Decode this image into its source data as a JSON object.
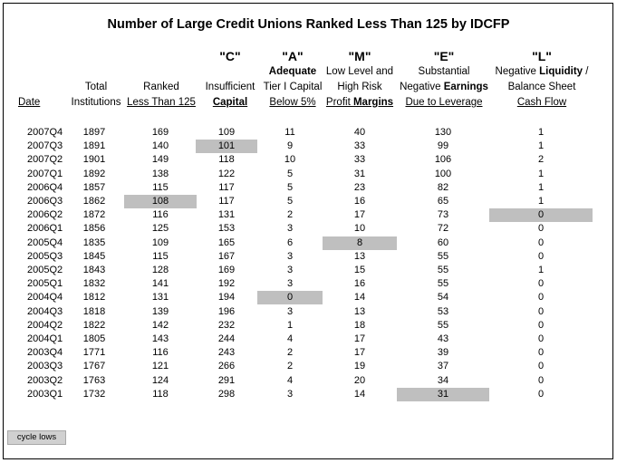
{
  "title": "Number of Large Credit Unions Ranked Less Than 125 by IDCFP",
  "headers": {
    "date": {
      "label": "Date"
    },
    "total": {
      "line1": "Total",
      "line2": "Institutions"
    },
    "ranked": {
      "line1": "Ranked",
      "line2": "Less Than 125"
    },
    "c": {
      "letter": "\"C\"",
      "line1": "Insufficient",
      "line2": "Capital"
    },
    "a": {
      "letter": "\"A\"",
      "line1": "Adequate",
      "line2": "Tier I Capital",
      "line3": "Below 5%"
    },
    "m": {
      "letter": "\"M\"",
      "line1": "Low Level and",
      "line2": "High Risk",
      "line3a": "Profit ",
      "line3b": "Margins"
    },
    "e": {
      "letter": "\"E\"",
      "line1": "Substantial",
      "line2a": "Negative ",
      "line2b": "Earnings",
      "line3": "Due to Leverage"
    },
    "l": {
      "letter": "\"L\"",
      "line1a": "Negative ",
      "line1b": "Liquidity",
      "line1c": " /",
      "line2": "Balance Sheet",
      "line3": "Cash Flow"
    }
  },
  "rows": [
    [
      "2007Q4",
      "1897",
      "169",
      "109",
      "11",
      "40",
      "130",
      "1"
    ],
    [
      "2007Q3",
      "1891",
      "140",
      "101",
      "9",
      "33",
      "99",
      "1"
    ],
    [
      "2007Q2",
      "1901",
      "149",
      "118",
      "10",
      "33",
      "106",
      "2"
    ],
    [
      "2007Q1",
      "1892",
      "138",
      "122",
      "5",
      "31",
      "100",
      "1"
    ],
    [
      "2006Q4",
      "1857",
      "115",
      "117",
      "5",
      "23",
      "82",
      "1"
    ],
    [
      "2006Q3",
      "1862",
      "108",
      "117",
      "5",
      "16",
      "65",
      "1"
    ],
    [
      "2006Q2",
      "1872",
      "116",
      "131",
      "2",
      "17",
      "73",
      "0"
    ],
    [
      "2006Q1",
      "1856",
      "125",
      "153",
      "3",
      "10",
      "72",
      "0"
    ],
    [
      "2005Q4",
      "1835",
      "109",
      "165",
      "6",
      "8",
      "60",
      "0"
    ],
    [
      "2005Q3",
      "1845",
      "115",
      "167",
      "3",
      "13",
      "55",
      "0"
    ],
    [
      "2005Q2",
      "1843",
      "128",
      "169",
      "3",
      "15",
      "55",
      "1"
    ],
    [
      "2005Q1",
      "1832",
      "141",
      "192",
      "3",
      "16",
      "55",
      "0"
    ],
    [
      "2004Q4",
      "1812",
      "131",
      "194",
      "0",
      "14",
      "54",
      "0"
    ],
    [
      "2004Q3",
      "1818",
      "139",
      "196",
      "3",
      "13",
      "53",
      "0"
    ],
    [
      "2004Q2",
      "1822",
      "142",
      "232",
      "1",
      "18",
      "55",
      "0"
    ],
    [
      "2004Q1",
      "1805",
      "143",
      "244",
      "4",
      "17",
      "43",
      "0"
    ],
    [
      "2003Q4",
      "1771",
      "116",
      "243",
      "2",
      "17",
      "39",
      "0"
    ],
    [
      "2003Q3",
      "1767",
      "121",
      "266",
      "2",
      "19",
      "37",
      "0"
    ],
    [
      "2003Q2",
      "1763",
      "124",
      "291",
      "4",
      "20",
      "34",
      "0"
    ],
    [
      "2003Q1",
      "1732",
      "118",
      "298",
      "3",
      "14",
      "31",
      "0"
    ]
  ],
  "highlights": [
    [
      1,
      3
    ],
    [
      5,
      2
    ],
    [
      6,
      7
    ],
    [
      8,
      5
    ],
    [
      12,
      4
    ],
    [
      19,
      6
    ]
  ],
  "highlight_color": "#bfbfbf",
  "legend": "cycle lows"
}
